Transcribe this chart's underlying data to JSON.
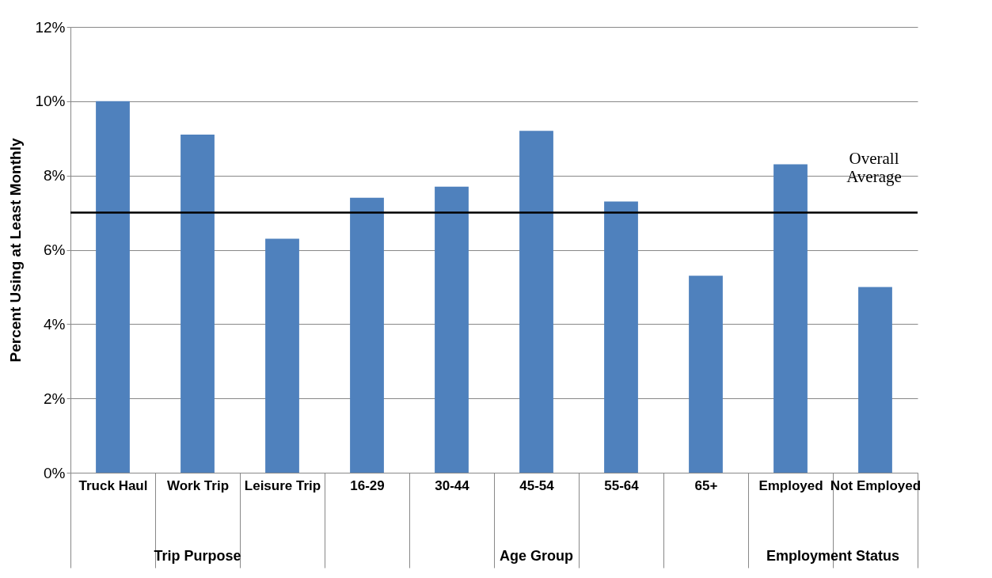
{
  "chart_data": {
    "type": "bar",
    "ylabel": "Percent Using at Least Monthly",
    "categories": [
      "Truck Haul",
      "Work Trip",
      "Leisure Trip",
      "16-29",
      "30-44",
      "45-54",
      "55-64",
      "65+",
      "Employed",
      "Not Employed"
    ],
    "values": [
      10,
      9.1,
      6.3,
      7.4,
      7.7,
      9.2,
      7.3,
      5.3,
      8.3,
      5.0
    ],
    "color": "#4f81bd",
    "ylim": [
      0,
      12
    ],
    "yticks": [
      {
        "value": 0,
        "label": "0%"
      },
      {
        "value": 2,
        "label": "2%"
      },
      {
        "value": 4,
        "label": "4%"
      },
      {
        "value": 6,
        "label": "6%"
      },
      {
        "value": 8,
        "label": "8%"
      },
      {
        "value": 10,
        "label": "10%"
      },
      {
        "value": 12,
        "label": "12%"
      }
    ],
    "grid": "y",
    "ref_lines": [
      {
        "axis": "y",
        "value": 7,
        "label": "Overall Average"
      }
    ],
    "annotations": [
      "Trip Purpose",
      "Age Group",
      "Employment Status"
    ]
  }
}
